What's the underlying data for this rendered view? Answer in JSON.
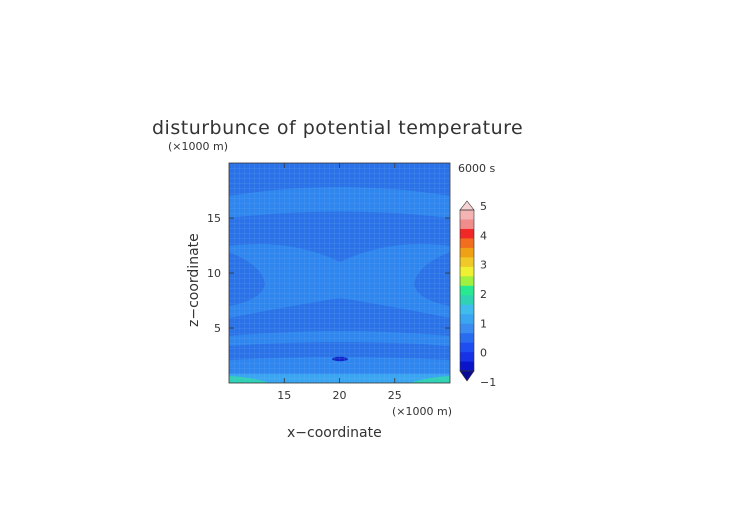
{
  "chart_data": {
    "type": "heatmap",
    "title": "disturbunce of potential temperature",
    "time_label": "6000 s",
    "xlabel": "x−coordinate",
    "ylabel": "z−coordinate",
    "x_unit": "(×1000 m)",
    "z_unit": "(×1000 m)",
    "xlim": [
      10,
      30
    ],
    "ylim": [
      0,
      20
    ],
    "x_ticks": [
      "15",
      "20",
      "25"
    ],
    "x_tick_values": [
      15,
      20,
      25
    ],
    "y_ticks": [
      "5",
      "10",
      "15"
    ],
    "y_tick_values": [
      5,
      10,
      15
    ],
    "grid": true,
    "colorbar": {
      "ticks": [
        "−1",
        "0",
        "1",
        "2",
        "3",
        "4",
        "5"
      ],
      "tick_values": [
        -1,
        0,
        1,
        2,
        3,
        4,
        5
      ],
      "levels": [
        -1,
        -0.75,
        -0.5,
        -0.25,
        0,
        0.25,
        0.5,
        0.75,
        1,
        1.5,
        2,
        2.5,
        3,
        3.5,
        4,
        4.5,
        5
      ],
      "colors": [
        "#0a14c8",
        "#1632e6",
        "#1e4ef2",
        "#2a6cf0",
        "#3a8cf0",
        "#3aa6f2",
        "#40bcec",
        "#30d2b4",
        "#28e890",
        "#a0f040",
        "#f0f032",
        "#f0c828",
        "#f0a014",
        "#f06e1e",
        "#f02828",
        "#f08c8c",
        "#f4b4b4"
      ],
      "under_color": "#0a0a96",
      "over_color": "#f8d2d2",
      "placement": "right"
    }
  }
}
